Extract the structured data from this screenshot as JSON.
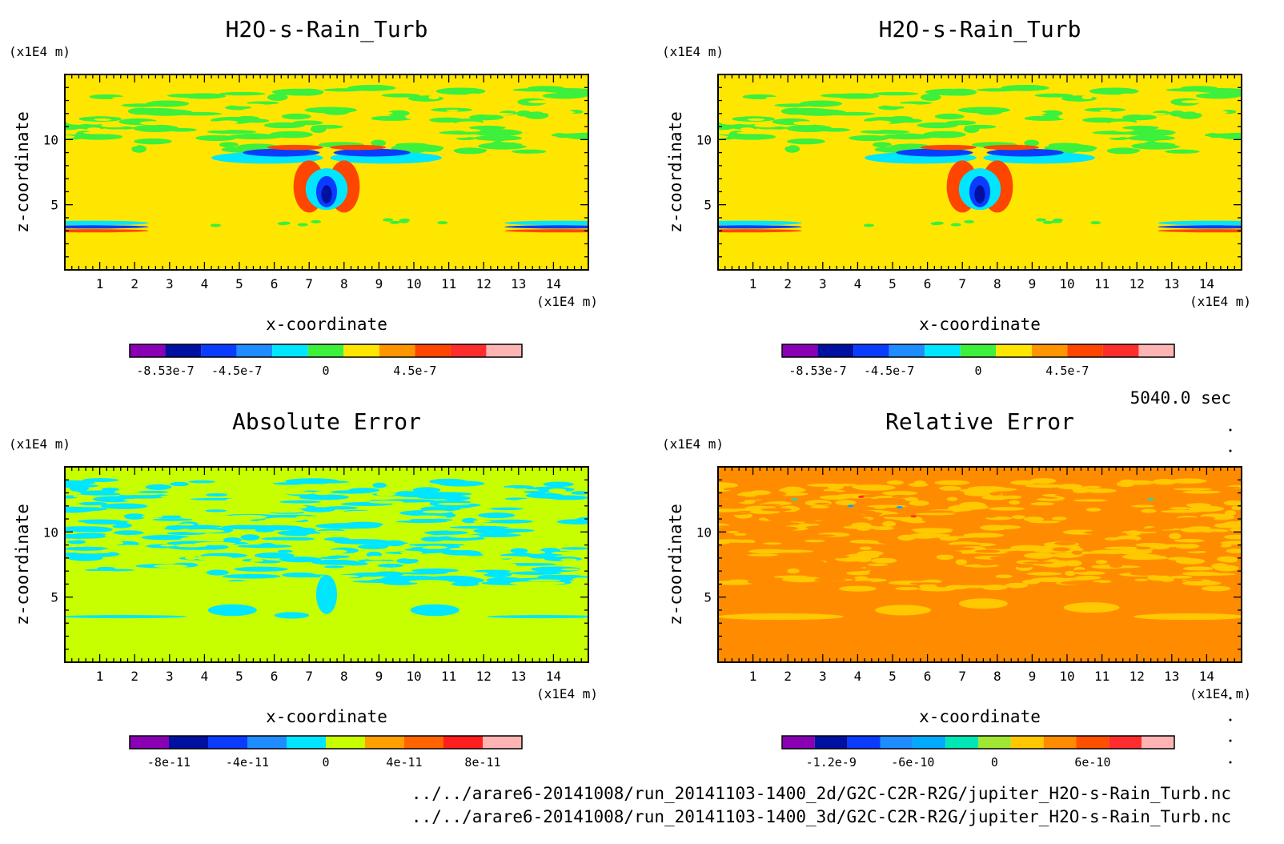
{
  "figure": {
    "time_label": "5040.0 sec",
    "file_paths": [
      "../../arare6-20141008/run_20141103-1400_2d/G2C-C2R-R2G/jupiter_H2O-s-Rain_Turb.nc",
      "../../arare6-20141008/run_20141103-1400_3d/G2C-C2R-R2G/jupiter_H2O-s-Rain_Turb.nc"
    ],
    "unit_label": "(x1E4 m)"
  },
  "chart_data": [
    {
      "type": "heatmap",
      "title": "H2O-s-Rain_Turb",
      "xlabel": "x-coordinate",
      "ylabel": "z-coordinate",
      "x_unit": "(x1E4 m)",
      "y_unit": "(x1E4 m)",
      "xlim": [
        0,
        15
      ],
      "ylim": [
        0,
        15
      ],
      "x_ticks": [
        "1",
        "2",
        "3",
        "4",
        "5",
        "6",
        "7",
        "8",
        "9",
        "10",
        "11",
        "12",
        "13",
        "14"
      ],
      "y_ticks": [
        "5",
        "10"
      ],
      "colorbar_ticks": [
        "-8.53e-7",
        "-4.5e-7",
        "0",
        "4.5e-7"
      ],
      "colorbar_colors": [
        "#8a00b4",
        "#0010a0",
        "#0a3cff",
        "#1f8cff",
        "#00e6ff",
        "#3cf03c",
        "#ffe600",
        "#ff9600",
        "#ff4600",
        "#ff2d2d",
        "#ffb4b4"
      ],
      "background": "#ffe600",
      "field": "h2o"
    },
    {
      "type": "heatmap",
      "title": "H2O-s-Rain_Turb",
      "xlabel": "x-coordinate",
      "ylabel": "z-coordinate",
      "x_unit": "(x1E4 m)",
      "y_unit": "(x1E4 m)",
      "xlim": [
        0,
        15
      ],
      "ylim": [
        0,
        15
      ],
      "x_ticks": [
        "1",
        "2",
        "3",
        "4",
        "5",
        "6",
        "7",
        "8",
        "9",
        "10",
        "11",
        "12",
        "13",
        "14"
      ],
      "y_ticks": [
        "5",
        "10"
      ],
      "colorbar_ticks": [
        "-8.53e-7",
        "-4.5e-7",
        "0",
        "4.5e-7"
      ],
      "colorbar_colors": [
        "#8a00b4",
        "#0010a0",
        "#0a3cff",
        "#1f8cff",
        "#00e6ff",
        "#3cf03c",
        "#ffe600",
        "#ff9600",
        "#ff4600",
        "#ff2d2d",
        "#ffb4b4"
      ],
      "background": "#ffe600",
      "field": "h2o"
    },
    {
      "type": "heatmap",
      "title": "Absolute Error",
      "xlabel": "x-coordinate",
      "ylabel": "z-coordinate",
      "x_unit": "(x1E4 m)",
      "y_unit": "(x1E4 m)",
      "xlim": [
        0,
        15
      ],
      "ylim": [
        0,
        15
      ],
      "x_ticks": [
        "1",
        "2",
        "3",
        "4",
        "5",
        "6",
        "7",
        "8",
        "9",
        "10",
        "11",
        "12",
        "13",
        "14"
      ],
      "y_ticks": [
        "5",
        "10"
      ],
      "colorbar_ticks": [
        "-8e-11",
        "-4e-11",
        "0",
        "4e-11",
        "8e-11"
      ],
      "colorbar_colors": [
        "#8a00b4",
        "#0010a0",
        "#0a3cff",
        "#1f8cff",
        "#00e6ff",
        "#c8ff00",
        "#ffa000",
        "#ff6400",
        "#ff1e1e",
        "#ffb4b4"
      ],
      "background": "#c8ff00",
      "field": "abs"
    },
    {
      "type": "heatmap",
      "title": "Relative Error",
      "xlabel": "x-coordinate",
      "ylabel": "z-coordinate",
      "x_unit": "(x1E4 m)",
      "y_unit": "(x1E4 m)",
      "xlim": [
        0,
        15
      ],
      "ylim": [
        0,
        15
      ],
      "x_ticks": [
        "1",
        "2",
        "3",
        "4",
        "5",
        "6",
        "7",
        "8",
        "9",
        "10",
        "11",
        "12",
        "13",
        "14"
      ],
      "y_ticks": [
        "5",
        "10"
      ],
      "colorbar_ticks": [
        "-1.2e-9",
        "-6e-10",
        "0",
        "6e-10"
      ],
      "colorbar_colors": [
        "#8a00b4",
        "#0010a0",
        "#0a3cff",
        "#1f8cff",
        "#00aaff",
        "#00e6b4",
        "#a0e632",
        "#ffc800",
        "#ff8c00",
        "#ff5000",
        "#ff2d2d",
        "#ffb4b4"
      ],
      "background": "#ff8c00",
      "field": "rel"
    }
  ]
}
